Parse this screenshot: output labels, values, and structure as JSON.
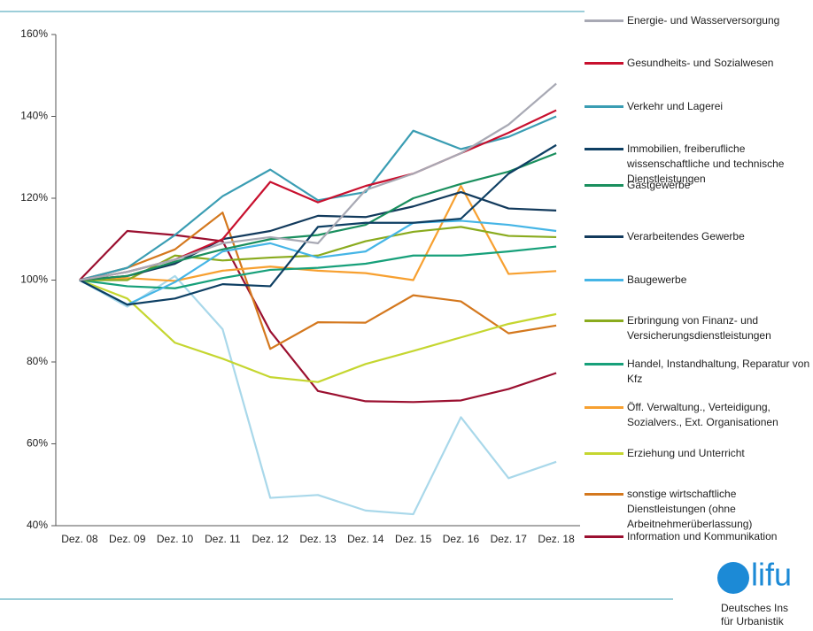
{
  "chart_data": {
    "type": "line",
    "categories": [
      "Dez. 08",
      "Dez. 09",
      "Dez. 10",
      "Dez. 11",
      "Dez. 12",
      "Dez. 13",
      "Dez. 14",
      "Dez. 15",
      "Dez. 16",
      "Dez. 17",
      "Dez. 18"
    ],
    "ylim": [
      40,
      160
    ],
    "yticks": [
      {
        "value": 40,
        "label": "40%"
      },
      {
        "value": 60,
        "label": "60%"
      },
      {
        "value": 80,
        "label": "80%"
      },
      {
        "value": 100,
        "label": "100%"
      },
      {
        "value": 120,
        "label": "120%"
      },
      {
        "value": 140,
        "label": "140%"
      },
      {
        "value": 160,
        "label": "160%"
      }
    ],
    "legend": "right",
    "series": [
      {
        "name": "Energie- und Wasserversorgung",
        "color": "#a8a9b4",
        "values": [
          100,
          102,
          105,
          109,
          110.5,
          109,
          122,
          126,
          131,
          138,
          148
        ]
      },
      {
        "name": "Gesundheits- und Sozialwesen",
        "color": "#c8102e",
        "values": [
          100,
          102,
          105,
          110,
          124,
          119,
          123,
          126,
          131,
          136,
          141.5
        ]
      },
      {
        "name": "Verkehr und Lagerei",
        "color": "#3a9db3",
        "values": [
          100,
          103,
          111,
          120.5,
          127,
          119.5,
          121.5,
          136.5,
          132,
          135,
          140
        ]
      },
      {
        "name": "Immobilien, freiberufliche wissenschaftliche und technische Dienstleistungen",
        "color": "#0e3f63",
        "values": [
          100,
          94,
          95.5,
          99,
          98.5,
          113,
          114,
          114,
          115,
          126,
          133
        ]
      },
      {
        "name": "Gastgewerbe",
        "color": "#1a8f5e",
        "values": [
          100,
          101,
          104.5,
          107.5,
          110,
          111,
          113.5,
          120,
          123.5,
          126.5,
          131
        ]
      },
      {
        "name": "Verarbeitendes Gewerbe",
        "color": "#123a5c",
        "values": [
          100,
          101,
          104,
          110,
          112,
          115.7,
          115.4,
          118,
          121.5,
          117.5,
          117
        ]
      },
      {
        "name": "Baugewerbe",
        "color": "#45b5e6",
        "values": [
          100,
          94,
          99.5,
          107,
          109,
          105.5,
          107,
          114,
          114.5,
          113.5,
          112
        ]
      },
      {
        "name": "Erbringung von Finanz- und Versicherungsdienstleistungen",
        "color": "#8aab1e",
        "values": [
          100,
          100,
          106,
          104.8,
          105.5,
          106,
          109.5,
          111.8,
          113,
          110.8,
          110.5
        ]
      },
      {
        "name": "Handel, Instandhaltung, Reparatur von Kfz",
        "color": "#17a07a",
        "values": [
          100,
          98.5,
          98,
          100.5,
          102.5,
          103,
          104,
          106,
          106,
          107,
          108.2
        ]
      },
      {
        "name": "Öff. Verwaltung., Verteidigung, Sozialvers., Ext. Organisationen",
        "color": "#f7a030",
        "values": [
          100,
          100.5,
          99.8,
          102.3,
          103.3,
          102.3,
          101.7,
          100,
          123,
          101.5,
          102.2
        ]
      },
      {
        "name": "Erziehung und Unterricht",
        "color": "#c5d630",
        "values": [
          100,
          95.5,
          84.7,
          80.8,
          76.3,
          75.1,
          79.5,
          82.7,
          86,
          89.3,
          91.7
        ]
      },
      {
        "name": "sonstige wirtschaftliche Dienstleistungen (ohne Arbeitnehmerüberlassung)",
        "color": "#d4781e",
        "values": [
          100,
          103,
          107.5,
          116.5,
          83.2,
          89.7,
          89.6,
          96.3,
          94.8,
          87,
          88.9
        ]
      },
      {
        "name": "Information und Kommunikation",
        "color": "#9b1030",
        "values": [
          100,
          112,
          111,
          109.5,
          87.5,
          72.9,
          70.4,
          70.2,
          70.6,
          73.4,
          77.3
        ]
      },
      {
        "color": "#a9d8ea",
        "values": [
          100,
          93.5,
          101,
          88,
          46.8,
          47.5,
          43.7,
          42.8,
          66.5,
          51.6,
          55.6
        ]
      }
    ]
  },
  "logo": {
    "mark": "lifu",
    "line1": "Deutsches Ins",
    "line2": "für Urbanistik"
  }
}
